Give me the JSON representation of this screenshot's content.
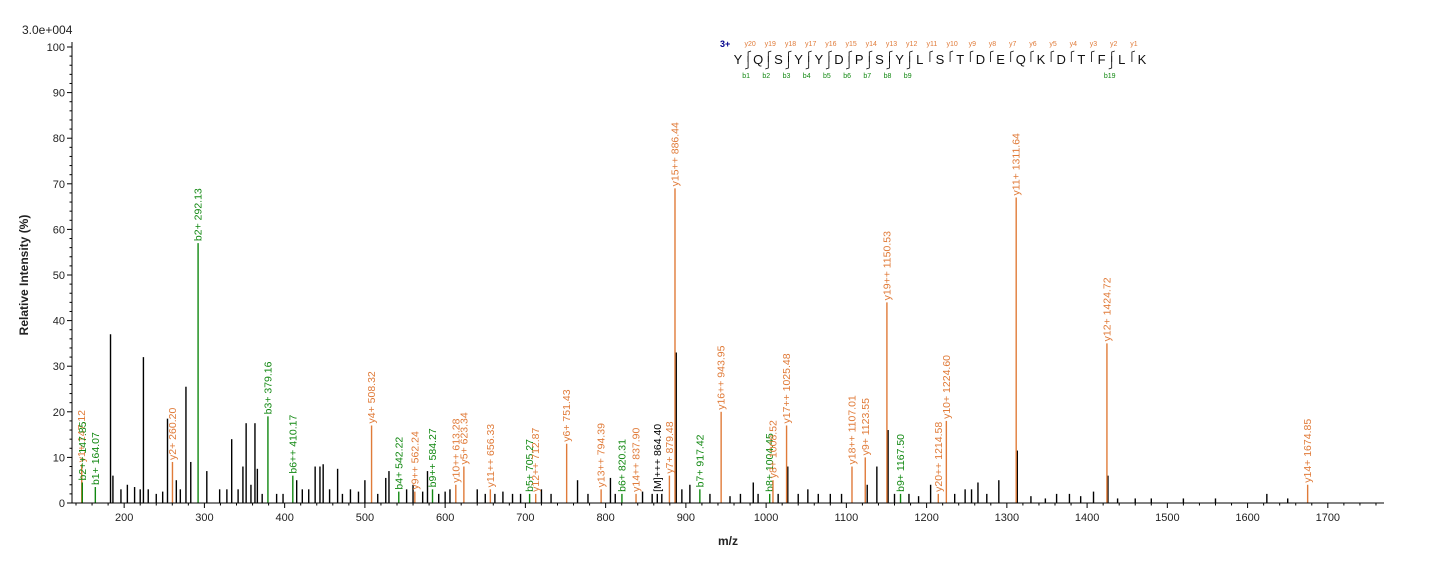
{
  "colors": {
    "y_ion": "#e07b39",
    "b_ion": "#118811",
    "unassigned": "#000000",
    "axis": "#000000",
    "charge": "#00008b"
  },
  "scale_label": "3.0e+004",
  "chart_data": {
    "type": "bar",
    "title": "",
    "xlabel": "m/z",
    "ylabel": "Relative Intensity (%)",
    "xlim": [
      135,
      1770
    ],
    "ylim": [
      0,
      100
    ],
    "x_ticks": [
      200,
      300,
      400,
      500,
      600,
      700,
      800,
      900,
      1000,
      1100,
      1200,
      1300,
      1400,
      1500,
      1600,
      1700
    ],
    "y_ticks": [
      0,
      10,
      20,
      30,
      40,
      50,
      60,
      70,
      80,
      90,
      100
    ],
    "peptide": {
      "charge": "3+",
      "sequence": [
        "Y",
        "Q",
        "S",
        "Y",
        "Y",
        "D",
        "P",
        "S",
        "Y",
        "L",
        "S",
        "T",
        "D",
        "E",
        "Q",
        "K",
        "D",
        "T",
        "F",
        "L",
        "K"
      ],
      "y_ion_labels": [
        "y20",
        "y19",
        "y18",
        "y17",
        "y16",
        "y15",
        "y14",
        "y13",
        "y12",
        "y11",
        "y10",
        "y9",
        "y8",
        "y7",
        "y6",
        "y5",
        "y4",
        "y3",
        "y2",
        "y1"
      ],
      "b_ion_labels": [
        "b1",
        "b2",
        "b3",
        "b4",
        "b5",
        "b6",
        "b7",
        "b8",
        "b9",
        "b19"
      ],
      "b_ion_positions": [
        1,
        2,
        3,
        4,
        5,
        6,
        7,
        8,
        9,
        19
      ]
    },
    "annotated_peaks": [
      {
        "mz": 147.12,
        "intensity": 8.5,
        "label": "y1+ 147.12",
        "ion": "y"
      },
      {
        "mz": 147.85,
        "intensity": 4.5,
        "label": "b2++ 147.85",
        "ion": "b"
      },
      {
        "mz": 164.07,
        "intensity": 3.5,
        "label": "b1+ 164.07",
        "ion": "b"
      },
      {
        "mz": 260.2,
        "intensity": 9,
        "label": "y2+ 260.20",
        "ion": "y"
      },
      {
        "mz": 292.13,
        "intensity": 57,
        "label": "b2+ 292.13",
        "ion": "b"
      },
      {
        "mz": 379.16,
        "intensity": 19,
        "label": "b3+ 379.16",
        "ion": "b"
      },
      {
        "mz": 410.17,
        "intensity": 6,
        "label": "b6++ 410.17",
        "ion": "b"
      },
      {
        "mz": 508.32,
        "intensity": 17,
        "label": "y4+ 508.32",
        "ion": "y"
      },
      {
        "mz": 542.22,
        "intensity": 2.5,
        "label": "b4+ 542.22",
        "ion": "b"
      },
      {
        "mz": 562.24,
        "intensity": 2.5,
        "label": "y9++ 562.24",
        "ion": "y"
      },
      {
        "mz": 584.27,
        "intensity": 3,
        "label": "b9++ 584.27",
        "ion": "b"
      },
      {
        "mz": 613.28,
        "intensity": 4,
        "label": "y10++ 613.28",
        "ion": "y"
      },
      {
        "mz": 623.34,
        "intensity": 8,
        "label": "y5+ 623.34",
        "ion": "y"
      },
      {
        "mz": 656.33,
        "intensity": 3,
        "label": "y11++ 656.33",
        "ion": "y"
      },
      {
        "mz": 705.27,
        "intensity": 2,
        "label": "b5+ 705.27",
        "ion": "b"
      },
      {
        "mz": 712.87,
        "intensity": 2,
        "label": "y12++ 712.87",
        "ion": "y"
      },
      {
        "mz": 751.43,
        "intensity": 13,
        "label": "y6+ 751.43",
        "ion": "y"
      },
      {
        "mz": 794.39,
        "intensity": 3,
        "label": "y13++ 794.39",
        "ion": "y"
      },
      {
        "mz": 820.31,
        "intensity": 2,
        "label": "b6+ 820.31",
        "ion": "b"
      },
      {
        "mz": 837.9,
        "intensity": 2,
        "label": "y14++ 837.90",
        "ion": "y"
      },
      {
        "mz": 864.4,
        "intensity": 2,
        "label": "[M]+++ 864.40",
        "ion": "other"
      },
      {
        "mz": 879.48,
        "intensity": 6,
        "label": "y7+ 879.48",
        "ion": "y"
      },
      {
        "mz": 886.44,
        "intensity": 69,
        "label": "y15++ 886.44",
        "ion": "y"
      },
      {
        "mz": 917.42,
        "intensity": 3,
        "label": "b7+ 917.42",
        "ion": "b"
      },
      {
        "mz": 943.95,
        "intensity": 20,
        "label": "y16++ 943.95",
        "ion": "y"
      },
      {
        "mz": 1004.45,
        "intensity": 2,
        "label": "b8+ 1004.45",
        "ion": "b"
      },
      {
        "mz": 1008.52,
        "intensity": 5,
        "label": "y8+ 1008.52",
        "ion": "y"
      },
      {
        "mz": 1025.48,
        "intensity": 17,
        "label": "y17++ 1025.48",
        "ion": "y"
      },
      {
        "mz": 1107.01,
        "intensity": 8,
        "label": "y18++ 1107.01",
        "ion": "y"
      },
      {
        "mz": 1123.55,
        "intensity": 10,
        "label": "y9+ 1123.55",
        "ion": "y"
      },
      {
        "mz": 1150.53,
        "intensity": 44,
        "label": "y19++ 1150.53",
        "ion": "y"
      },
      {
        "mz": 1167.5,
        "intensity": 2,
        "label": "b9+ 1167.50",
        "ion": "b"
      },
      {
        "mz": 1214.58,
        "intensity": 2,
        "label": "y20++ 1214.58",
        "ion": "y"
      },
      {
        "mz": 1224.6,
        "intensity": 18,
        "label": "y10+ 1224.60",
        "ion": "y"
      },
      {
        "mz": 1311.64,
        "intensity": 67,
        "label": "y11+ 1311.64",
        "ion": "y"
      },
      {
        "mz": 1424.72,
        "intensity": 35,
        "label": "y12+ 1424.72",
        "ion": "y"
      },
      {
        "mz": 1674.85,
        "intensity": 4,
        "label": "y14+ 1674.85",
        "ion": "y"
      }
    ],
    "unassigned_peaks": [
      {
        "mz": 183,
        "intensity": 37
      },
      {
        "mz": 186,
        "intensity": 6
      },
      {
        "mz": 196,
        "intensity": 3
      },
      {
        "mz": 204,
        "intensity": 4
      },
      {
        "mz": 213,
        "intensity": 3.5
      },
      {
        "mz": 220,
        "intensity": 3
      },
      {
        "mz": 224,
        "intensity": 32
      },
      {
        "mz": 230,
        "intensity": 3
      },
      {
        "mz": 240,
        "intensity": 2
      },
      {
        "mz": 248,
        "intensity": 2.5
      },
      {
        "mz": 254,
        "intensity": 18.5
      },
      {
        "mz": 265,
        "intensity": 5
      },
      {
        "mz": 270,
        "intensity": 3
      },
      {
        "mz": 277,
        "intensity": 25.5
      },
      {
        "mz": 283,
        "intensity": 9
      },
      {
        "mz": 303,
        "intensity": 7
      },
      {
        "mz": 319,
        "intensity": 3
      },
      {
        "mz": 328,
        "intensity": 3
      },
      {
        "mz": 334,
        "intensity": 14
      },
      {
        "mz": 342,
        "intensity": 3
      },
      {
        "mz": 348,
        "intensity": 8
      },
      {
        "mz": 352,
        "intensity": 17.5
      },
      {
        "mz": 358,
        "intensity": 4
      },
      {
        "mz": 363,
        "intensity": 17.5
      },
      {
        "mz": 366,
        "intensity": 7.5
      },
      {
        "mz": 372,
        "intensity": 2
      },
      {
        "mz": 390,
        "intensity": 2
      },
      {
        "mz": 398,
        "intensity": 2
      },
      {
        "mz": 415,
        "intensity": 5
      },
      {
        "mz": 422,
        "intensity": 3
      },
      {
        "mz": 430,
        "intensity": 3
      },
      {
        "mz": 438,
        "intensity": 8
      },
      {
        "mz": 444,
        "intensity": 8
      },
      {
        "mz": 448,
        "intensity": 8.5
      },
      {
        "mz": 456,
        "intensity": 3
      },
      {
        "mz": 466,
        "intensity": 7.5
      },
      {
        "mz": 472,
        "intensity": 2
      },
      {
        "mz": 482,
        "intensity": 3
      },
      {
        "mz": 492,
        "intensity": 2.5
      },
      {
        "mz": 500,
        "intensity": 5
      },
      {
        "mz": 516,
        "intensity": 2
      },
      {
        "mz": 526,
        "intensity": 5.5
      },
      {
        "mz": 530,
        "intensity": 7
      },
      {
        "mz": 552,
        "intensity": 3
      },
      {
        "mz": 560,
        "intensity": 4
      },
      {
        "mz": 572,
        "intensity": 2.5
      },
      {
        "mz": 578,
        "intensity": 7
      },
      {
        "mz": 592,
        "intensity": 2
      },
      {
        "mz": 600,
        "intensity": 2.5
      },
      {
        "mz": 606,
        "intensity": 3
      },
      {
        "mz": 640,
        "intensity": 3
      },
      {
        "mz": 650,
        "intensity": 2
      },
      {
        "mz": 662,
        "intensity": 2
      },
      {
        "mz": 672,
        "intensity": 2.5
      },
      {
        "mz": 684,
        "intensity": 2
      },
      {
        "mz": 694,
        "intensity": 2
      },
      {
        "mz": 720,
        "intensity": 3
      },
      {
        "mz": 732,
        "intensity": 2
      },
      {
        "mz": 765,
        "intensity": 5
      },
      {
        "mz": 778,
        "intensity": 2
      },
      {
        "mz": 806,
        "intensity": 5.5
      },
      {
        "mz": 812,
        "intensity": 2
      },
      {
        "mz": 846,
        "intensity": 2.5
      },
      {
        "mz": 858,
        "intensity": 2
      },
      {
        "mz": 870,
        "intensity": 2
      },
      {
        "mz": 888,
        "intensity": 33
      },
      {
        "mz": 895,
        "intensity": 3
      },
      {
        "mz": 905,
        "intensity": 4
      },
      {
        "mz": 930,
        "intensity": 2
      },
      {
        "mz": 955,
        "intensity": 1.5
      },
      {
        "mz": 968,
        "intensity": 2
      },
      {
        "mz": 984,
        "intensity": 4.5
      },
      {
        "mz": 990,
        "intensity": 2
      },
      {
        "mz": 1015,
        "intensity": 2
      },
      {
        "mz": 1027,
        "intensity": 8
      },
      {
        "mz": 1040,
        "intensity": 2
      },
      {
        "mz": 1052,
        "intensity": 3
      },
      {
        "mz": 1065,
        "intensity": 2
      },
      {
        "mz": 1080,
        "intensity": 2
      },
      {
        "mz": 1094,
        "intensity": 2
      },
      {
        "mz": 1126,
        "intensity": 4
      },
      {
        "mz": 1138,
        "intensity": 8
      },
      {
        "mz": 1152,
        "intensity": 16
      },
      {
        "mz": 1160,
        "intensity": 2
      },
      {
        "mz": 1178,
        "intensity": 2
      },
      {
        "mz": 1190,
        "intensity": 1.5
      },
      {
        "mz": 1205,
        "intensity": 4
      },
      {
        "mz": 1235,
        "intensity": 2
      },
      {
        "mz": 1248,
        "intensity": 3
      },
      {
        "mz": 1256,
        "intensity": 3
      },
      {
        "mz": 1264,
        "intensity": 4.5
      },
      {
        "mz": 1275,
        "intensity": 2
      },
      {
        "mz": 1290,
        "intensity": 5
      },
      {
        "mz": 1313,
        "intensity": 11.5
      },
      {
        "mz": 1330,
        "intensity": 1.5
      },
      {
        "mz": 1348,
        "intensity": 1
      },
      {
        "mz": 1362,
        "intensity": 2
      },
      {
        "mz": 1378,
        "intensity": 2
      },
      {
        "mz": 1392,
        "intensity": 1.5
      },
      {
        "mz": 1408,
        "intensity": 2.5
      },
      {
        "mz": 1426,
        "intensity": 6
      },
      {
        "mz": 1438,
        "intensity": 1
      },
      {
        "mz": 1460,
        "intensity": 1
      },
      {
        "mz": 1480,
        "intensity": 1
      },
      {
        "mz": 1520,
        "intensity": 1
      },
      {
        "mz": 1560,
        "intensity": 1
      },
      {
        "mz": 1624,
        "intensity": 2
      },
      {
        "mz": 1650,
        "intensity": 1
      }
    ]
  }
}
